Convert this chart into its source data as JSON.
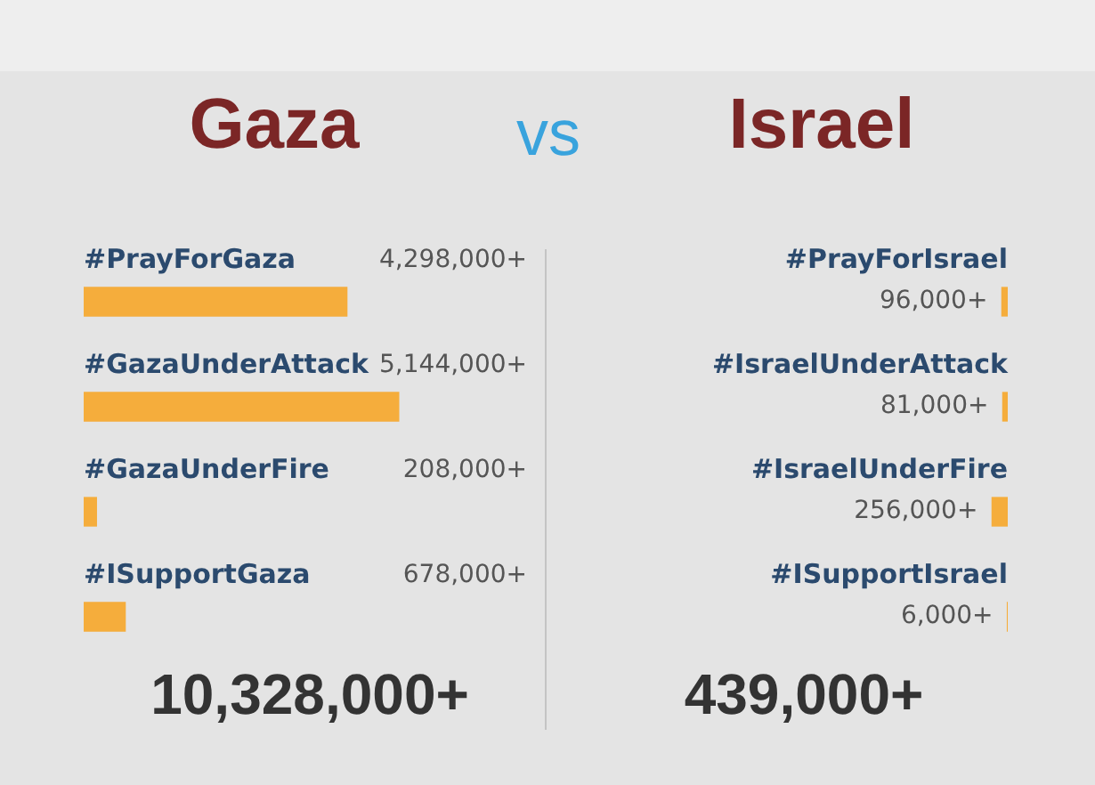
{
  "chart_data": [
    {
      "type": "bar",
      "orientation": "horizontal",
      "title": "Gaza",
      "categories": [
        "#PrayForGaza",
        "#GazaUnderAttack",
        "#GazaUnderFire",
        "#ISupportGaza"
      ],
      "values": [
        4298000,
        5144000,
        208000,
        678000
      ],
      "value_labels": [
        "4,298,000+",
        "5,144,000+",
        "208,000+",
        "678,000+"
      ],
      "color": "#f5ad3c",
      "tick_labels": false,
      "annotations": [
        "10,328,000+"
      ]
    },
    {
      "type": "bar",
      "orientation": "horizontal",
      "title": "Israel",
      "categories": [
        "#PrayForIsrael",
        "#IsraelUnderAttack",
        "#IsraelUnderFire",
        "#ISupportIsrael"
      ],
      "values": [
        96000,
        81000,
        256000,
        6000
      ],
      "value_labels": [
        "96,000+",
        "81,000+",
        "256,000+",
        "6,000+"
      ],
      "color": "#f5ad3c",
      "tick_labels": false,
      "annotations": [
        "439,000+"
      ]
    },
    {
      "type": "other",
      "title": "vs"
    }
  ]
}
